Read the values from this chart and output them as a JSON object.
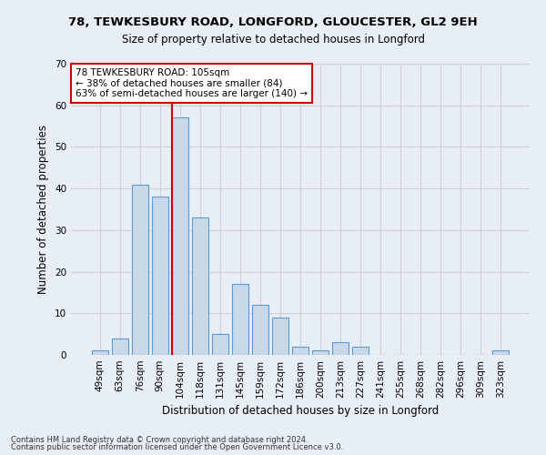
{
  "title1": "78, TEWKESBURY ROAD, LONGFORD, GLOUCESTER, GL2 9EH",
  "title2": "Size of property relative to detached houses in Longford",
  "xlabel": "Distribution of detached houses by size in Longford",
  "ylabel": "Number of detached properties",
  "categories": [
    "49sqm",
    "63sqm",
    "76sqm",
    "90sqm",
    "104sqm",
    "118sqm",
    "131sqm",
    "145sqm",
    "159sqm",
    "172sqm",
    "186sqm",
    "200sqm",
    "213sqm",
    "227sqm",
    "241sqm",
    "255sqm",
    "268sqm",
    "282sqm",
    "296sqm",
    "309sqm",
    "323sqm"
  ],
  "values": [
    1,
    4,
    41,
    38,
    57,
    33,
    5,
    17,
    12,
    9,
    2,
    1,
    3,
    2,
    0,
    0,
    0,
    0,
    0,
    0,
    1
  ],
  "bar_color": "#c9d9e8",
  "bar_edge_color": "#5b9bd5",
  "vline_x_index": 4,
  "vline_color": "#cc0000",
  "annotation_text": "78 TEWKESBURY ROAD: 105sqm\n← 38% of detached houses are smaller (84)\n63% of semi-detached houses are larger (140) →",
  "annotation_box_color": "#ffffff",
  "annotation_box_edge": "#cc0000",
  "ylim": [
    0,
    70
  ],
  "yticks": [
    0,
    10,
    20,
    30,
    40,
    50,
    60,
    70
  ],
  "grid_color": "#d0d0d0",
  "bg_color": "#e8eef5",
  "footer1": "Contains HM Land Registry data © Crown copyright and database right 2024.",
  "footer2": "Contains public sector information licensed under the Open Government Licence v3.0."
}
